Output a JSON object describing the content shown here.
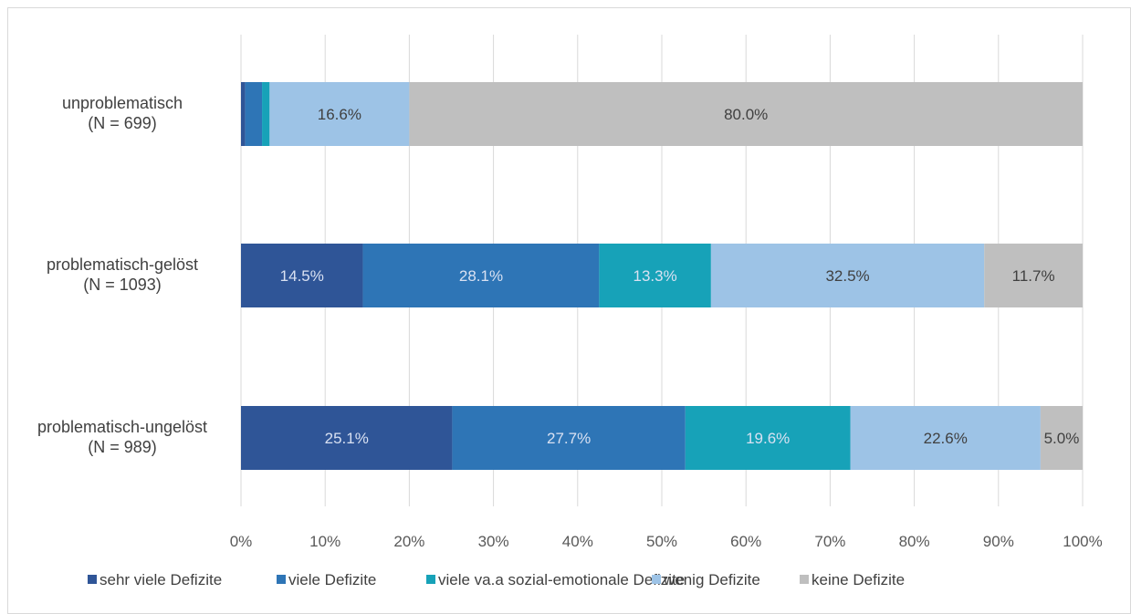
{
  "chart_data": {
    "type": "bar",
    "orientation": "horizontal",
    "stacked": "percent",
    "categories": [
      [
        "unproblematisch",
        "(N = 699)"
      ],
      [
        "problematisch-gelöst",
        "(N = 1093)"
      ],
      [
        "problematisch-ungelöst",
        "(N = 989)"
      ]
    ],
    "series": [
      {
        "name": "sehr viele Defizite",
        "color": "#2F5597",
        "label_color": "#D9E1F2",
        "values": [
          0.5,
          14.5,
          25.1
        ],
        "labels": [
          "",
          "14.5%",
          "25.1%"
        ]
      },
      {
        "name": "viele Defizite",
        "color": "#2E75B6",
        "label_color": "#D9E1F2",
        "values": [
          2.0,
          28.1,
          27.7
        ],
        "labels": [
          "",
          "28.1%",
          "27.7%"
        ]
      },
      {
        "name": "viele va.a sozial-emotionale Defizite",
        "color": "#17A2B8",
        "label_color": "#D9E1F2",
        "values": [
          0.9,
          13.3,
          19.6
        ],
        "labels": [
          "",
          "13.3%",
          "19.6%"
        ]
      },
      {
        "name": "wenig Defizite",
        "color": "#9DC3E6",
        "label_color": "#404040",
        "values": [
          16.6,
          32.5,
          22.6
        ],
        "labels": [
          "16.6%",
          "32.5%",
          "22.6%"
        ]
      },
      {
        "name": "keine Defizite",
        "color": "#BFBFBF",
        "label_color": "#404040",
        "values": [
          80.0,
          11.7,
          5.0
        ],
        "labels": [
          "80.0%",
          "11.7%",
          "5.0%"
        ]
      }
    ],
    "xlim": [
      0,
      100
    ],
    "xticks": [
      0,
      10,
      20,
      30,
      40,
      50,
      60,
      70,
      80,
      90,
      100
    ],
    "xtick_labels": [
      "0%",
      "10%",
      "20%",
      "30%",
      "40%",
      "50%",
      "60%",
      "70%",
      "80%",
      "90%",
      "100%"
    ],
    "grid": true,
    "legend_position": "bottom",
    "gridline_color": "#D9D9D9",
    "frame_color": "#D9D9D9"
  }
}
